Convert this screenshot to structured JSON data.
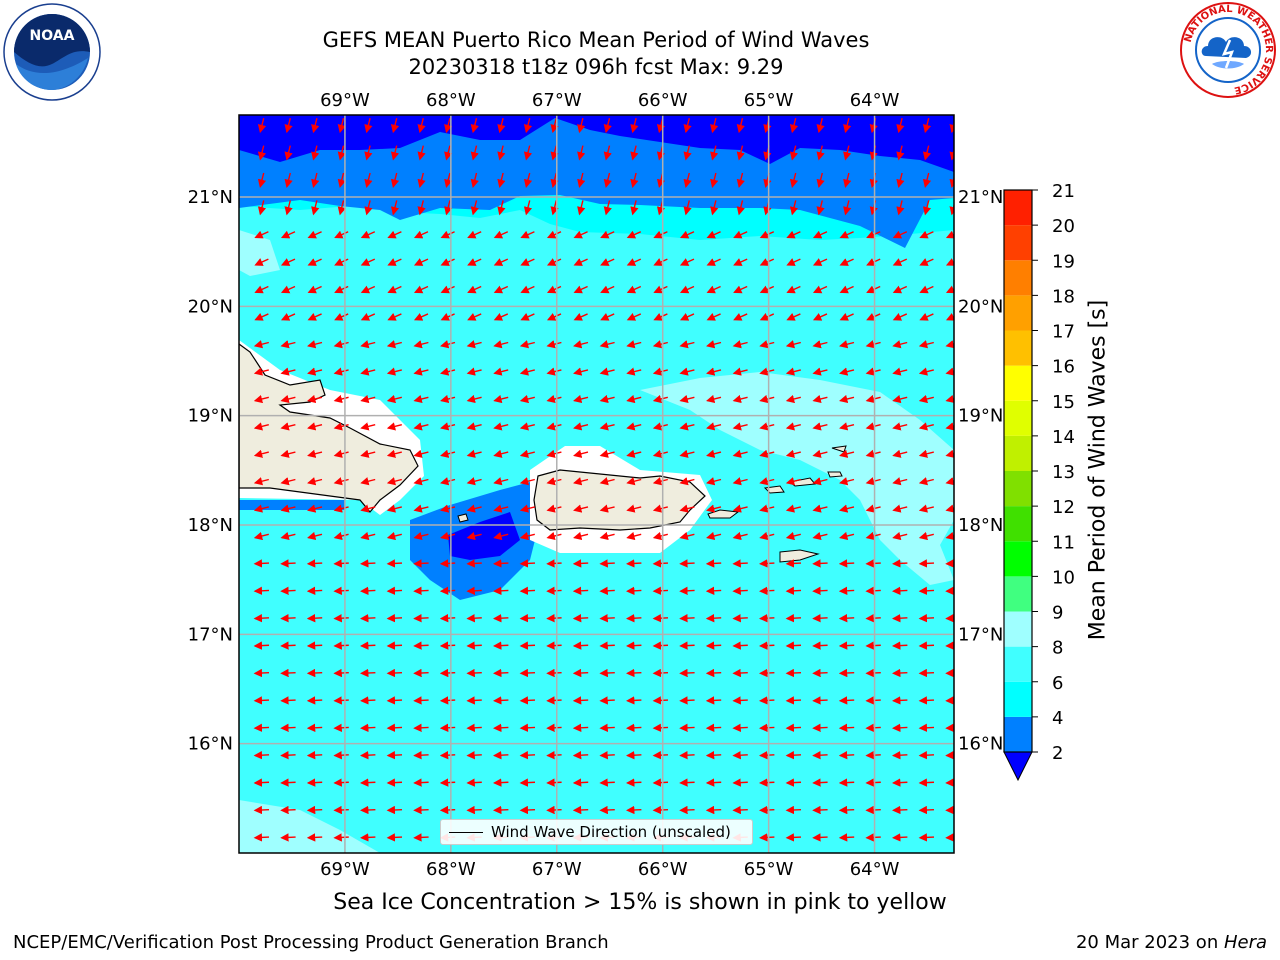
{
  "title_line1": "GEFS MEAN Puerto Rico Mean Period of Wind Waves",
  "title_line2": "20230318 t18z 096h fcst   Max: 9.29",
  "footer_note": "Sea Ice Concentration > 15% is shown in pink to yellow",
  "credit_left": "NCEP/EMC/Verification Post Processing Product Generation Branch",
  "credit_right_prefix": "20 Mar 2023 on ",
  "credit_right_host": "Hera",
  "logos": {
    "left": {
      "icon": "noaa-logo",
      "text": "NOAA"
    },
    "right": {
      "icon": "nws-logo",
      "text": "NATIONAL WEATHER SERVICE"
    }
  },
  "legend": {
    "text": "Wind Wave Direction (unscaled)",
    "color": "#000000"
  },
  "chart_data": {
    "type": "heatmap",
    "title": "GEFS MEAN Puerto Rico Mean Period of Wind Waves",
    "subtitle": "20230318 t18z 096h fcst   Max: 9.29",
    "x_ticks": [
      "69°W",
      "68°W",
      "67°W",
      "66°W",
      "65°W",
      "64°W"
    ],
    "x_tick_values": [
      -69,
      -68,
      -67,
      -66,
      -65,
      -64
    ],
    "y_ticks": [
      "21°N",
      "20°N",
      "19°N",
      "18°N",
      "17°N",
      "16°N"
    ],
    "y_tick_values": [
      21,
      20,
      19,
      18,
      17,
      16
    ],
    "xlim": [
      -70,
      -63.25
    ],
    "ylim": [
      15,
      21.75
    ],
    "grid": true,
    "max_value": 9.29,
    "colorbar": {
      "label": "Mean Period of Wind Waves [s]",
      "ticks": [
        "2",
        "4",
        "6",
        "8",
        "9",
        "10",
        "11",
        "12",
        "13",
        "14",
        "15",
        "16",
        "17",
        "18",
        "19",
        "20",
        "21"
      ],
      "tick_values": [
        2,
        4,
        6,
        8,
        9,
        10,
        11,
        12,
        13,
        14,
        15,
        16,
        17,
        18,
        19,
        20,
        21
      ],
      "colors": [
        "#0000ff",
        "#0080ff",
        "#00ffff",
        "#40ffff",
        "#9fffff",
        "#40ff80",
        "#00ff00",
        "#40e000",
        "#80e000",
        "#c0f000",
        "#e0ff00",
        "#ffff00",
        "#ffc000",
        "#ffa000",
        "#ff7f00",
        "#ff4000",
        "#ff2000",
        "#ff0000"
      ],
      "extend": "min",
      "under_color": "#0000ff"
    },
    "land_color": "#efedde",
    "vector_color": "#ff0000"
  }
}
